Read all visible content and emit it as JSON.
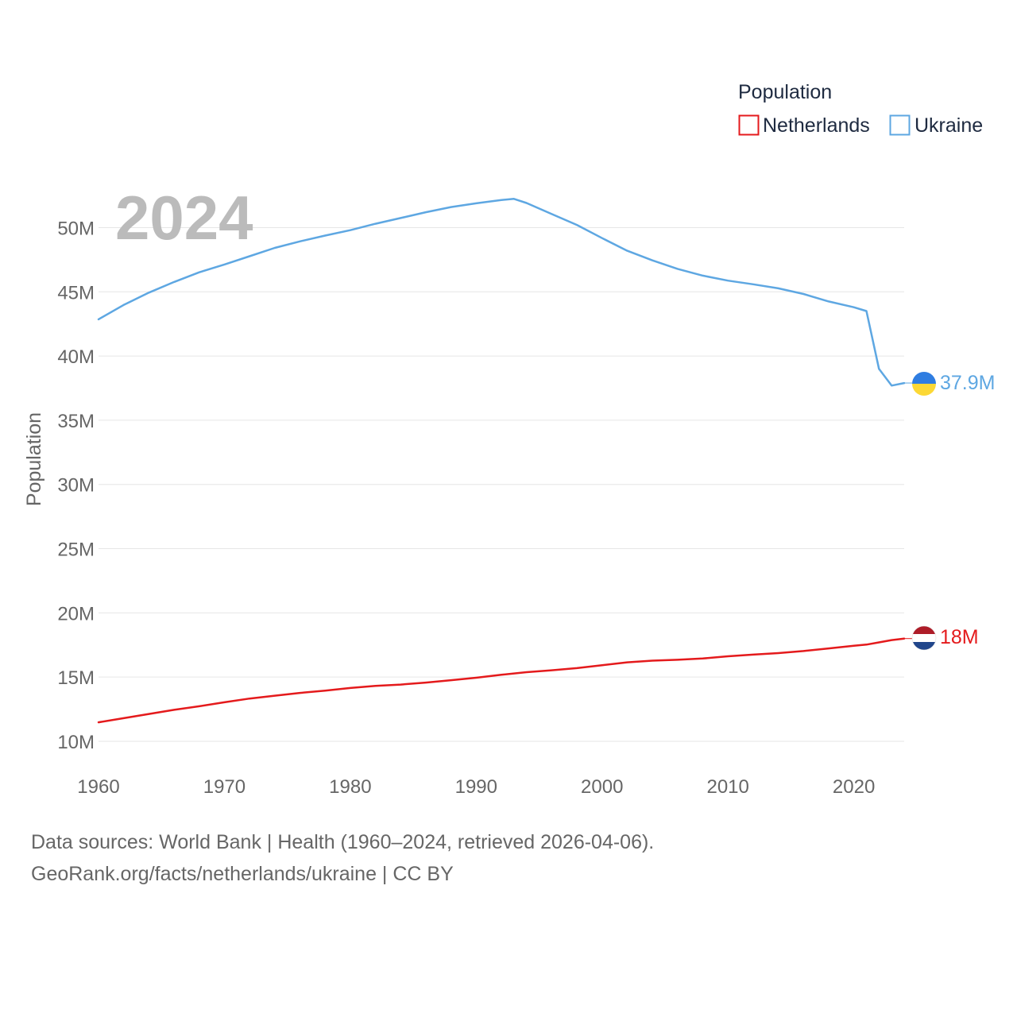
{
  "chart_data": {
    "type": "line",
    "current_year": "2024",
    "ylabel": "Population",
    "xlabel": "",
    "ylim": [
      10000000,
      53000000
    ],
    "xlim": [
      1960,
      2024
    ],
    "y_ticks": [
      10000000,
      15000000,
      20000000,
      25000000,
      30000000,
      35000000,
      40000000,
      45000000,
      50000000
    ],
    "y_tick_labels": [
      "10M",
      "15M",
      "20M",
      "25M",
      "30M",
      "35M",
      "40M",
      "45M",
      "50M"
    ],
    "x_ticks": [
      1960,
      1970,
      1980,
      1990,
      2000,
      2010,
      2020
    ],
    "x_tick_labels": [
      "1960",
      "1970",
      "1980",
      "1990",
      "2000",
      "2010",
      "2020"
    ],
    "grid": true,
    "legend": {
      "title": "Population",
      "placement": "top-right",
      "entries": [
        "Netherlands",
        "Ukraine"
      ]
    },
    "series": [
      {
        "name": "Netherlands",
        "color": "#e41a1c",
        "end_label": "18M",
        "flag": "netherlands-flag",
        "flag_colors": [
          "#ae1c28",
          "#ffffff",
          "#21468b"
        ],
        "x": [
          1960,
          1962,
          1964,
          1966,
          1968,
          1970,
          1972,
          1974,
          1976,
          1978,
          1980,
          1982,
          1984,
          1986,
          1988,
          1990,
          1992,
          1994,
          1996,
          1998,
          2000,
          2002,
          2004,
          2006,
          2008,
          2010,
          2012,
          2014,
          2016,
          2018,
          2020,
          2021,
          2022,
          2023,
          2024
        ],
        "values": [
          11480000,
          11800000,
          12130000,
          12450000,
          12730000,
          13040000,
          13330000,
          13550000,
          13770000,
          13940000,
          14150000,
          14310000,
          14420000,
          14570000,
          14760000,
          14950000,
          15180000,
          15380000,
          15530000,
          15700000,
          15930000,
          16150000,
          16280000,
          16350000,
          16450000,
          16620000,
          16750000,
          16870000,
          17030000,
          17230000,
          17440000,
          17530000,
          17700000,
          17880000,
          18000000
        ]
      },
      {
        "name": "Ukraine",
        "color": "#5ea7e2",
        "end_label": "37.9M",
        "flag": "ukraine-flag",
        "flag_colors": [
          "#2f7de1",
          "#fcd835"
        ],
        "x": [
          1960,
          1962,
          1964,
          1966,
          1968,
          1970,
          1972,
          1974,
          1976,
          1978,
          1980,
          1982,
          1984,
          1986,
          1988,
          1990,
          1992,
          1993,
          1994,
          1996,
          1998,
          2000,
          2002,
          2004,
          2006,
          2008,
          2010,
          2012,
          2014,
          2016,
          2018,
          2020,
          2021,
          2022,
          2023,
          2024
        ],
        "values": [
          42860000,
          43980000,
          44940000,
          45770000,
          46520000,
          47130000,
          47770000,
          48420000,
          48930000,
          49380000,
          49800000,
          50300000,
          50750000,
          51200000,
          51600000,
          51890000,
          52150000,
          52240000,
          51920000,
          51060000,
          50210000,
          49180000,
          48200000,
          47450000,
          46790000,
          46260000,
          45870000,
          45590000,
          45270000,
          44830000,
          44250000,
          43800000,
          43500000,
          39000000,
          37700000,
          37900000
        ]
      }
    ]
  },
  "source": {
    "line1": "Data sources: World Bank | Health (1960–2024, retrieved 2026-04-06).",
    "line2": "GeoRank.org/facts/netherlands/ukraine | CC BY"
  }
}
